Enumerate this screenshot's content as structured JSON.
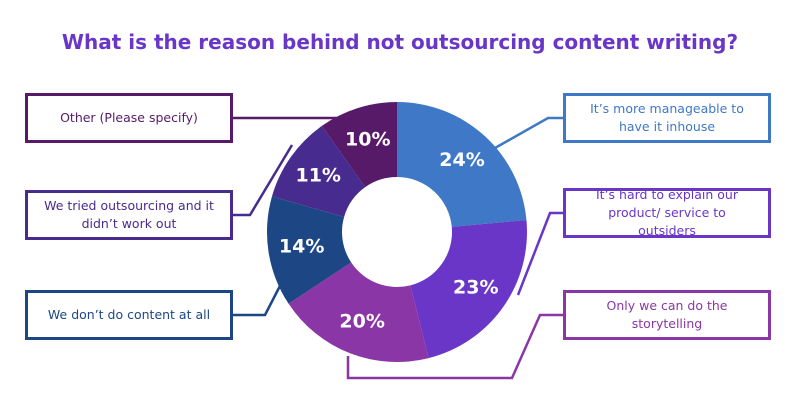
{
  "chart_data": {
    "type": "pie",
    "title": "What is the reason behind not outsourcing content writing?",
    "categories": [
      "It’s more manageable to have it inhouse",
      "It’s hard to explain our product/ service to outsiders",
      "Only we can do the storytelling",
      "We don’t do content at all",
      "We tried outsourcing and it didn’t work out",
      "Other (Please specify)"
    ],
    "values": [
      24,
      23,
      20,
      14,
      11,
      10
    ],
    "value_labels": [
      "24%",
      "23%",
      "20%",
      "14%",
      "11%",
      "10%"
    ],
    "colors": [
      "#3f78c6",
      "#6936c8",
      "#8b36a6",
      "#1c4684",
      "#482b8f",
      "#561a68"
    ]
  }
}
